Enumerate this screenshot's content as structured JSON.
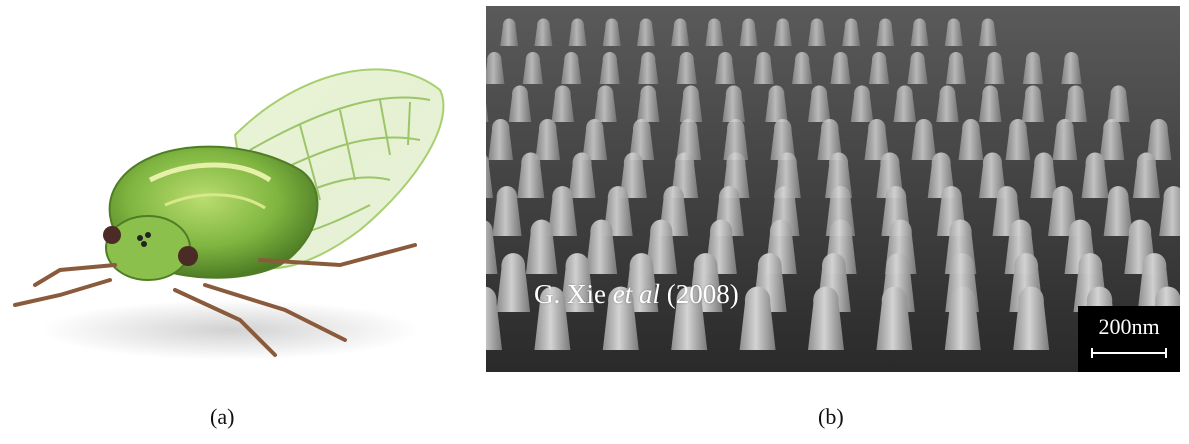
{
  "panels": [
    {
      "id": "a",
      "label": "(a)"
    },
    {
      "id": "b",
      "label": "(b)"
    }
  ],
  "credit": {
    "author": "G. Xie",
    "etal": "et al",
    "year": "(2008)"
  },
  "scale_bar": {
    "text": "200nm"
  },
  "colors": {
    "cicada_body": "#7fb540",
    "cicada_dark": "#4f7d26",
    "wing_vein": "#9cc56a",
    "legs": "#8a5a3c",
    "sem_background": "#2e2e2e",
    "sem_pillar": "#b8b8b8"
  }
}
